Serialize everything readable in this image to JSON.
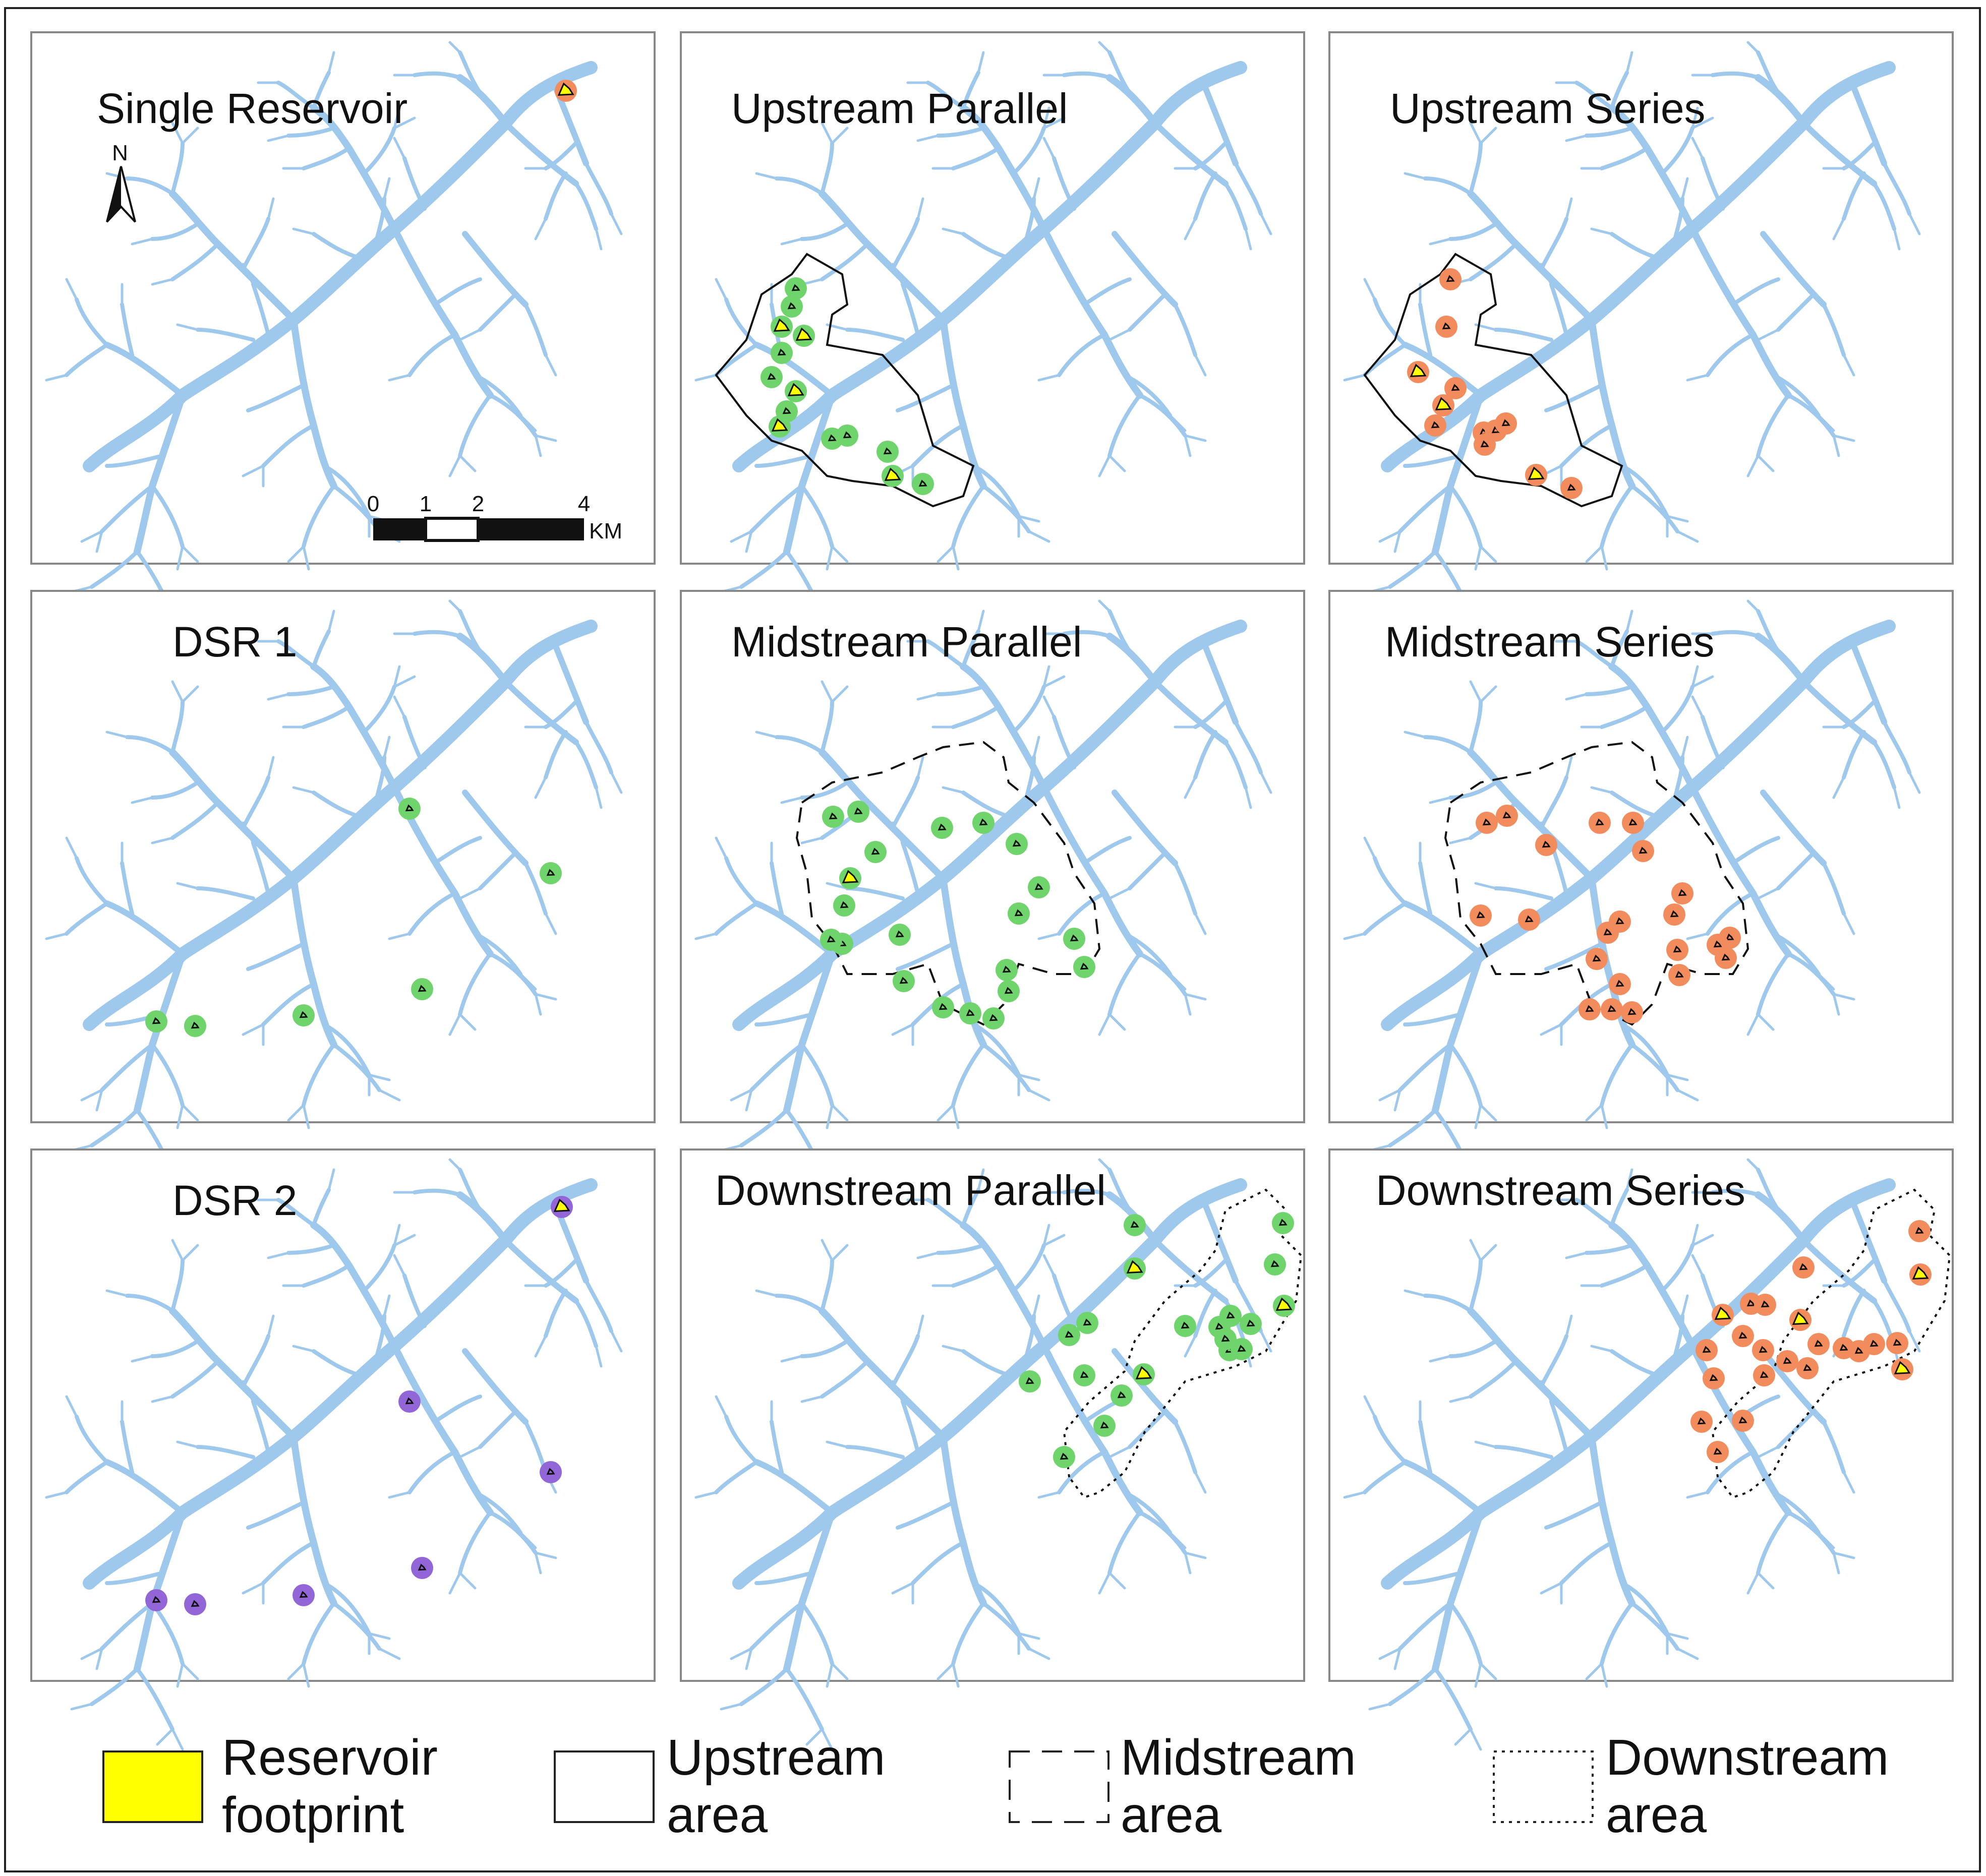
{
  "panels": [
    {
      "title": "Single Reservoir",
      "region": "none",
      "marker": "orange"
    },
    {
      "title": "Upstream Parallel",
      "region": "upstream",
      "marker": "green"
    },
    {
      "title": "Upstream Series",
      "region": "upstream",
      "marker": "orange"
    },
    {
      "title": "DSR 1",
      "region": "none",
      "marker": "green"
    },
    {
      "title": "Midstream Parallel",
      "region": "midstream",
      "marker": "green"
    },
    {
      "title": "Midstream Series",
      "region": "midstream",
      "marker": "orange"
    },
    {
      "title": "DSR 2",
      "region": "none",
      "marker": "purple"
    },
    {
      "title": "Downstream Parallel",
      "region": "downstream",
      "marker": "green"
    },
    {
      "title": "Downstream Series",
      "region": "downstream",
      "marker": "orange"
    }
  ],
  "north_arrow": {
    "label": "N"
  },
  "scale_bar": {
    "ticks": [
      "0",
      "1",
      "2",
      "4"
    ],
    "unit": "KM"
  },
  "legend": {
    "footprint": {
      "line1": "Reservoir",
      "line2": "footprint"
    },
    "upstream": {
      "line1": "Upstream",
      "line2": "area"
    },
    "midstream": {
      "line1": "Midstream",
      "line2": "area"
    },
    "downstream": {
      "line1": "Downstream",
      "line2": "area"
    }
  },
  "colors": {
    "river": "#9ec8ec",
    "footprint": "#ffff00",
    "green": "#6fd46b",
    "orange": "#f28c5c",
    "purple": "#9366d8",
    "panel_border": "#888888"
  }
}
